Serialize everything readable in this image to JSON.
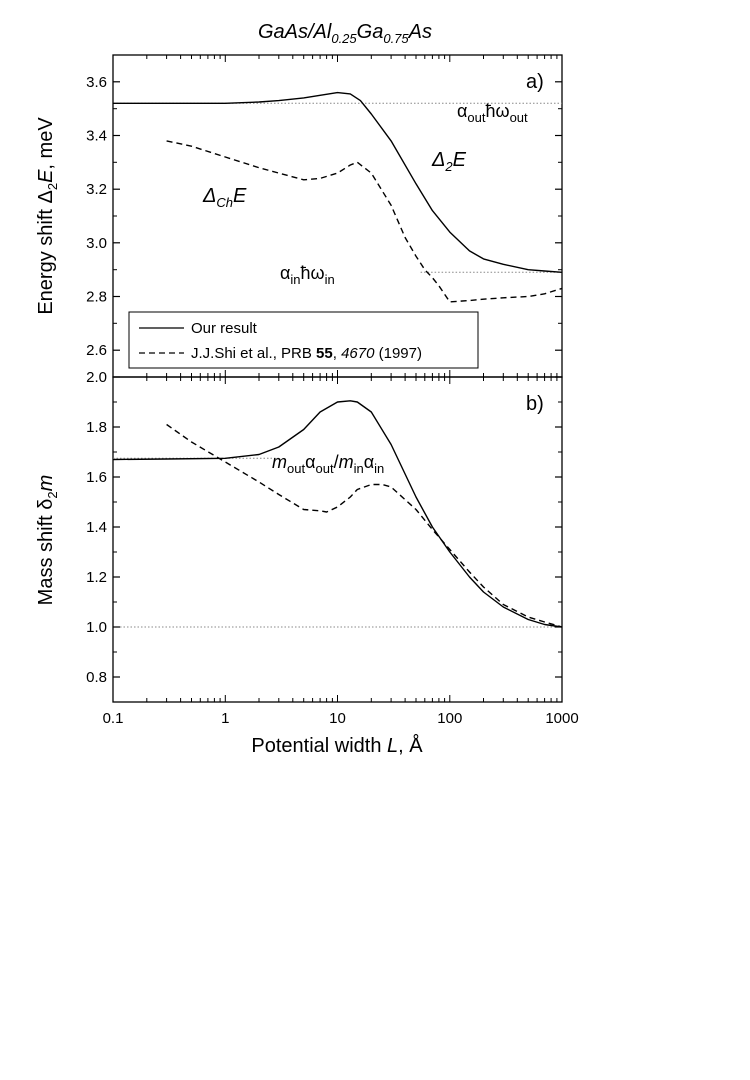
{
  "figure_title": {
    "main": "GaAs/Al",
    "sub1": "0.25",
    "mid": "Ga",
    "sub2": "0.75",
    "end": "As"
  },
  "x_axis": {
    "label_text": "Potential width ",
    "label_var": "L",
    "label_unit": ", Å",
    "ticks": [
      "0.1",
      "1",
      "10",
      "100",
      "1000"
    ]
  },
  "panel_a": {
    "tag": "a)",
    "ylabel_text": "Energy shift ",
    "ylabel_var": "E",
    "ylabel_unit": ", meV",
    "ticks": [
      "2.6",
      "2.8",
      "3.0",
      "3.2",
      "3.4",
      "3.6"
    ],
    "ann_out": {
      "alpha": "α",
      "sub_out": "out",
      "hw": "ħω",
      "sub_out2": "out"
    },
    "ann_in": {
      "alpha": "α",
      "sub_in": "in",
      "hw": "ħω",
      "sub_in2": "in"
    },
    "ann_d2e": {
      "delta": "Δ",
      "sub": "2",
      "var": "E"
    },
    "ann_dche": {
      "delta": "Δ",
      "sub": "Ch",
      "var": "E"
    }
  },
  "panel_b": {
    "tag": "b)",
    "ylabel_text": "Mass shift  δ",
    "ylabel_sub": "2",
    "ylabel_var": "m",
    "ticks": [
      "0.8",
      "1.0",
      "1.2",
      "1.4",
      "1.6",
      "1.8",
      "2.0"
    ],
    "ann_ratio": {
      "m1": "m",
      "s1": "out",
      "a1": "α",
      "s2": "out",
      "slash": "/",
      "m2": "m",
      "s3": "in",
      "a2": "α",
      "s4": "in"
    }
  },
  "legend": {
    "our": "Our result",
    "shi_pre": "J.J.Shi et al., PRB ",
    "shi_vol": "55",
    "shi_sep": ", ",
    "shi_page": "4670",
    "shi_year": " (1997)"
  },
  "colors": {
    "line": "#000000",
    "ref": "#888888"
  },
  "chart_data": [
    {
      "type": "line",
      "panel": "a",
      "xscale": "log",
      "xlim": [
        0.1,
        1000
      ],
      "ylim": [
        2.5,
        3.7
      ],
      "ylabel": "Energy shift Δ2E, meV",
      "xlabel": "Potential width L, Å",
      "reference_lines": [
        {
          "y": 3.52,
          "x_from": 0.1,
          "x_to": 1000,
          "label": "α_out ħω_out"
        },
        {
          "y": 2.89,
          "x_from": 55,
          "x_to": 1000,
          "label": "α_in ħω_in"
        }
      ],
      "series": [
        {
          "name": "Our result",
          "style": "solid",
          "x": [
            0.1,
            0.3,
            1,
            2,
            3,
            5,
            7,
            10,
            13,
            16,
            20,
            30,
            50,
            70,
            100,
            150,
            200,
            300,
            500,
            700,
            1000
          ],
          "y": [
            3.52,
            3.52,
            3.52,
            3.525,
            3.53,
            3.54,
            3.55,
            3.56,
            3.555,
            3.53,
            3.48,
            3.38,
            3.22,
            3.12,
            3.04,
            2.97,
            2.94,
            2.92,
            2.9,
            2.895,
            2.89
          ]
        },
        {
          "name": "J.J.Shi et al., PRB 55, 4670 (1997)",
          "style": "dashed",
          "x": [
            0.3,
            0.5,
            1,
            2,
            3,
            5,
            7,
            10,
            13,
            15,
            20,
            30,
            40,
            50,
            60,
            70,
            80,
            100,
            150,
            200,
            300,
            500,
            700,
            1000
          ],
          "y": [
            3.38,
            3.36,
            3.32,
            3.28,
            3.26,
            3.235,
            3.24,
            3.26,
            3.29,
            3.3,
            3.26,
            3.14,
            3.02,
            2.95,
            2.9,
            2.87,
            2.84,
            2.78,
            2.785,
            2.79,
            2.795,
            2.8,
            2.81,
            2.83
          ]
        }
      ]
    },
    {
      "type": "line",
      "panel": "b",
      "xscale": "log",
      "xlim": [
        0.1,
        1000
      ],
      "ylim": [
        0.7,
        2.0
      ],
      "ylabel": "Mass shift δ2m",
      "xlabel": "Potential width L, Å",
      "reference_lines": [
        {
          "y": 1.675,
          "x_from": 0.1,
          "x_to": 3,
          "label": "m_out α_out / m_in α_in"
        },
        {
          "y": 1.0,
          "x_from": 0.1,
          "x_to": 1000,
          "label": ""
        }
      ],
      "series": [
        {
          "name": "Our result",
          "style": "solid",
          "x": [
            0.1,
            0.3,
            1,
            2,
            3,
            5,
            7,
            10,
            13,
            15,
            20,
            30,
            50,
            70,
            100,
            150,
            200,
            300,
            500,
            700,
            1000
          ],
          "y": [
            1.67,
            1.672,
            1.675,
            1.69,
            1.72,
            1.79,
            1.86,
            1.9,
            1.905,
            1.9,
            1.86,
            1.73,
            1.52,
            1.4,
            1.3,
            1.2,
            1.14,
            1.08,
            1.03,
            1.01,
            1.0
          ]
        },
        {
          "name": "J.J.Shi et al., PRB 55, 4670 (1997)",
          "style": "dashed",
          "x": [
            0.3,
            0.5,
            1,
            2,
            3,
            5,
            7,
            8,
            10,
            13,
            15,
            20,
            25,
            30,
            50,
            70,
            100,
            150,
            200,
            300,
            500,
            700,
            1000
          ],
          "y": [
            1.81,
            1.74,
            1.66,
            1.58,
            1.53,
            1.47,
            1.465,
            1.46,
            1.48,
            1.52,
            1.55,
            1.57,
            1.57,
            1.56,
            1.47,
            1.39,
            1.31,
            1.22,
            1.16,
            1.09,
            1.04,
            1.02,
            1.0
          ]
        }
      ]
    }
  ]
}
